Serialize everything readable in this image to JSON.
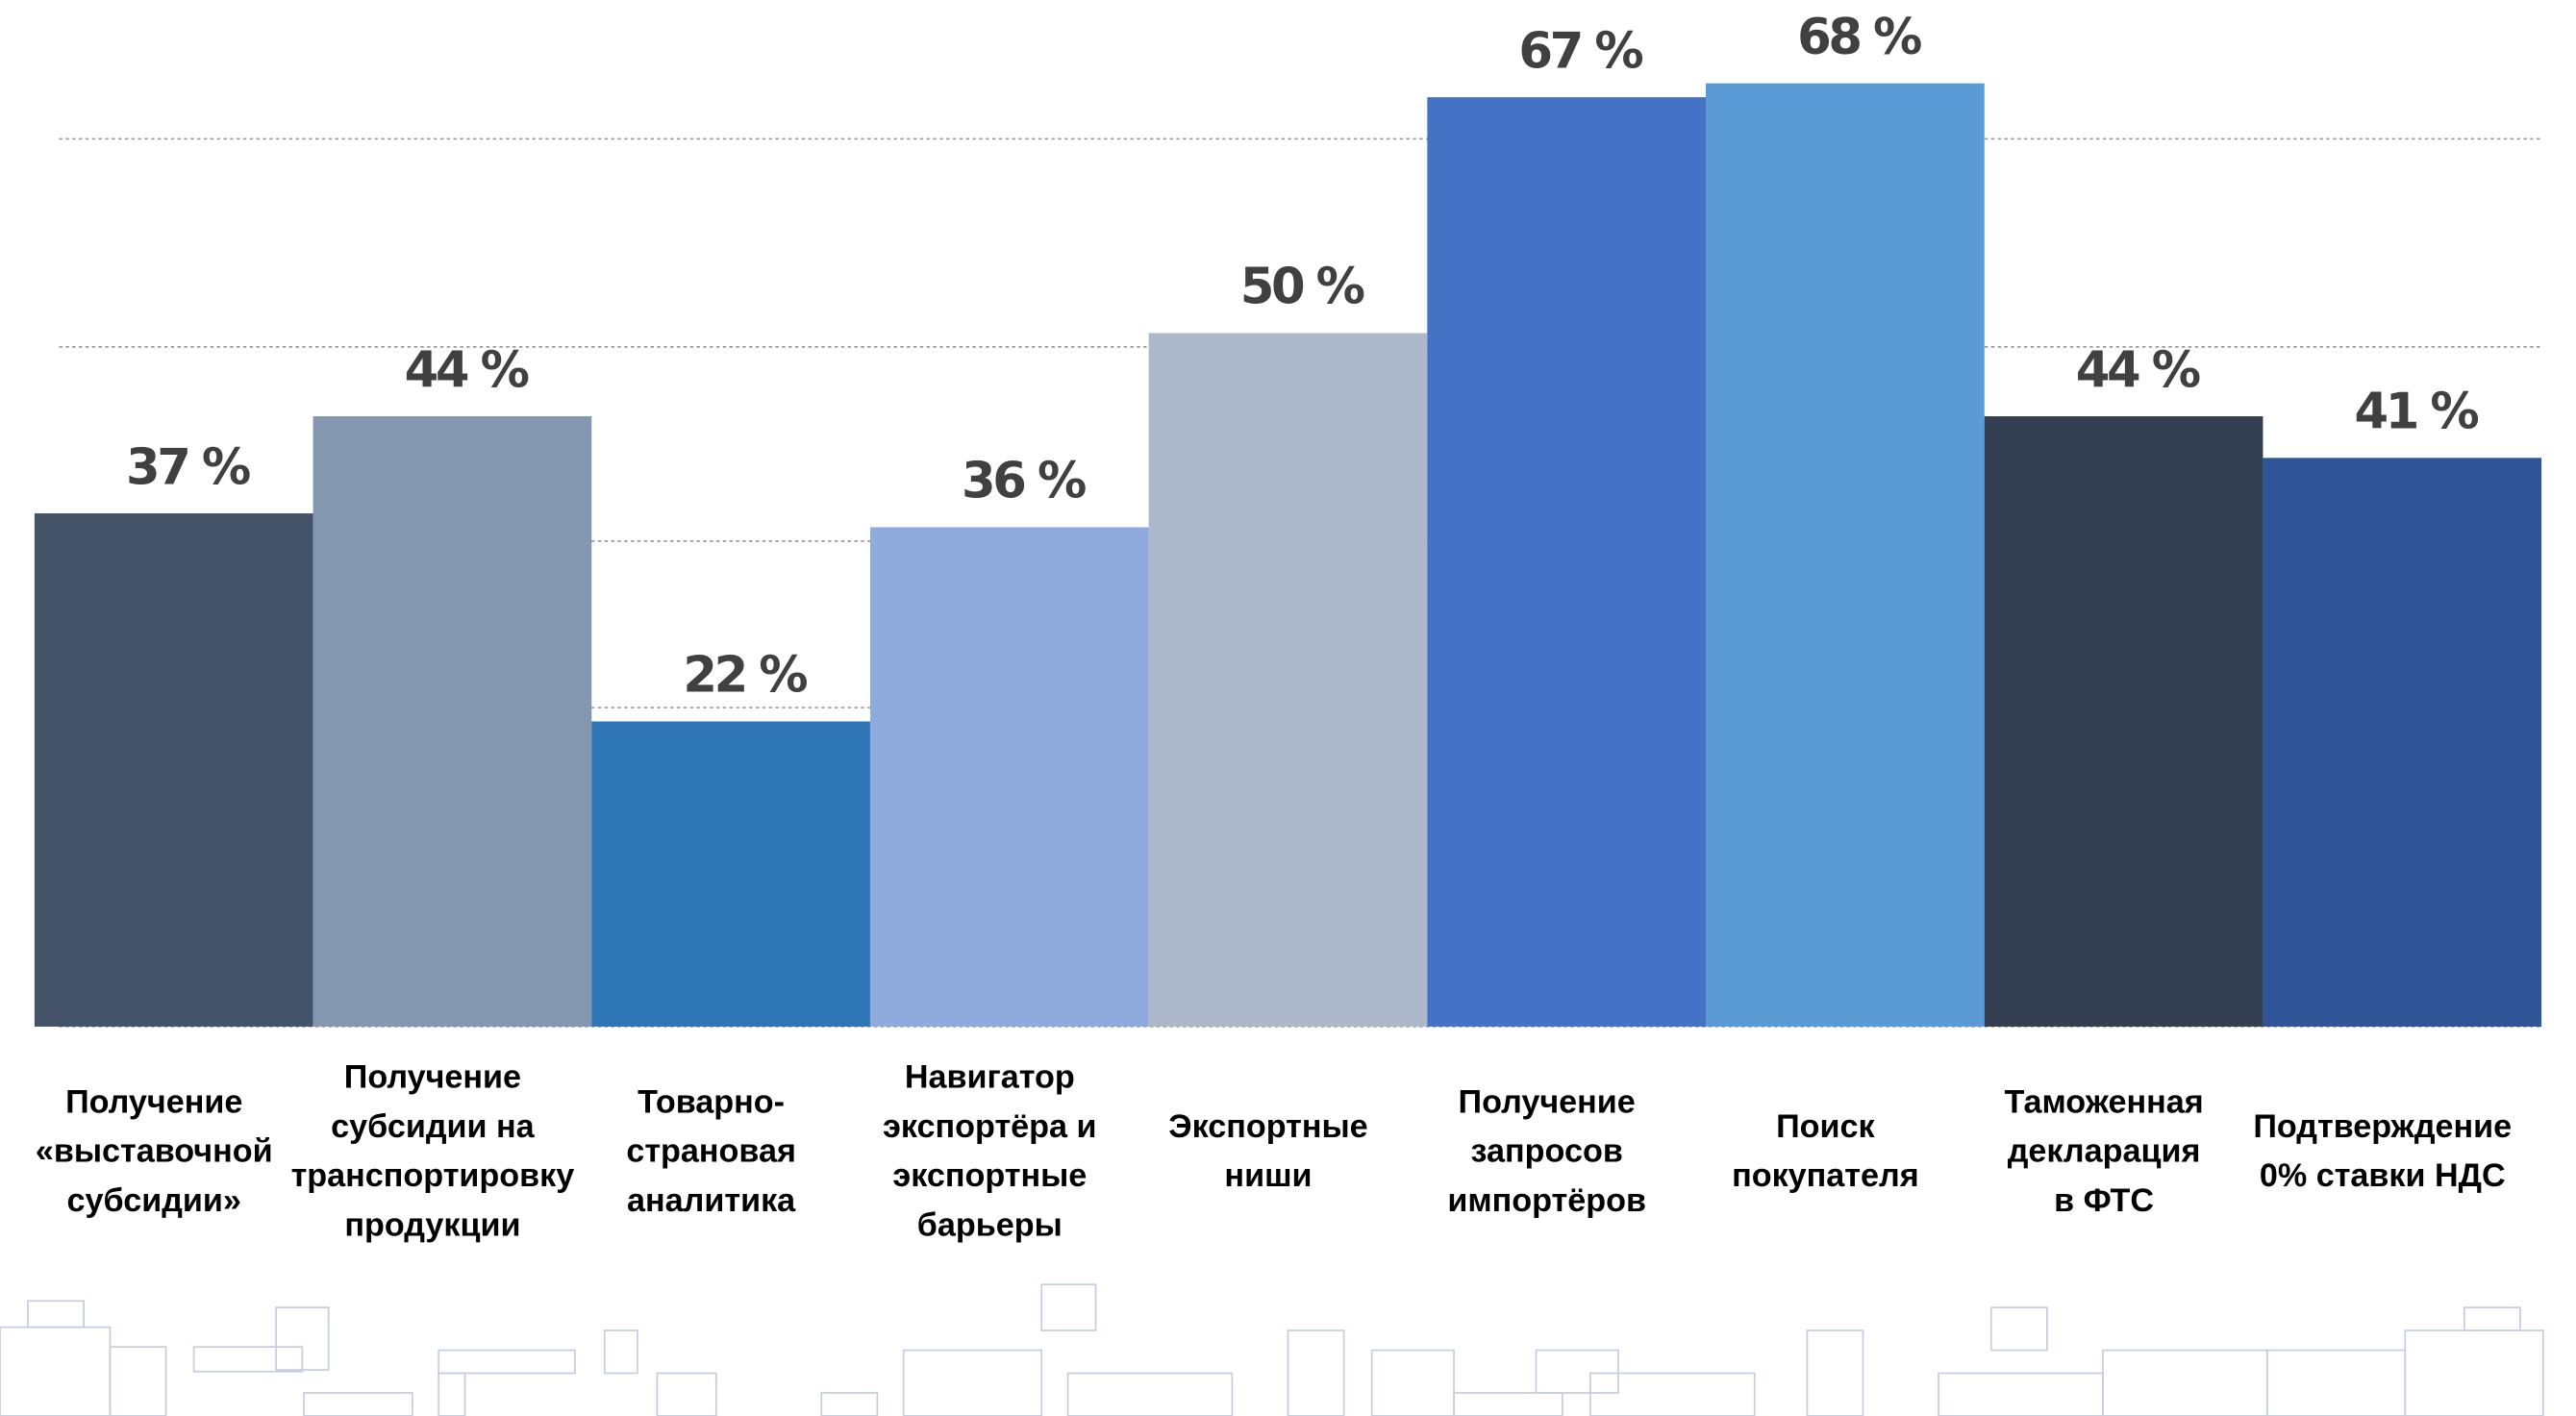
{
  "chart_data": {
    "type": "bar",
    "categories": [
      "Получение\n«выставочной\nсубсидии»",
      "Получение\nсубсидии на\nтранспортировку\nпродукции",
      "Товарно-\nстрановая\nаналитика",
      "Навигатор\nэкспортёра и\nэкспортные\nбарьеры",
      "Экспортные\nниши",
      "Получение\nзапросов\nимпортёров",
      "Поиск\nпокупателя",
      "Таможенная\nдекларация\nв ФТС",
      "Подтверждение\n0% ставки НДС"
    ],
    "values": [
      37,
      44,
      22,
      36,
      50,
      67,
      68,
      44,
      41
    ],
    "value_labels": [
      "37 %",
      "44 %",
      "22 %",
      "36 %",
      "50 %",
      "67 %",
      "68 %",
      "44 %",
      "41 %"
    ],
    "colors": [
      "#445368",
      "#8497b0",
      "#2e75b6",
      "#8faadc",
      "#adb9ca",
      "#4472c4",
      "#5b9bd5",
      "#333f50",
      "#2f5597"
    ],
    "ylim": [
      0,
      74
    ],
    "yticks": [
      0,
      23,
      35,
      49,
      64
    ],
    "grid": true
  }
}
